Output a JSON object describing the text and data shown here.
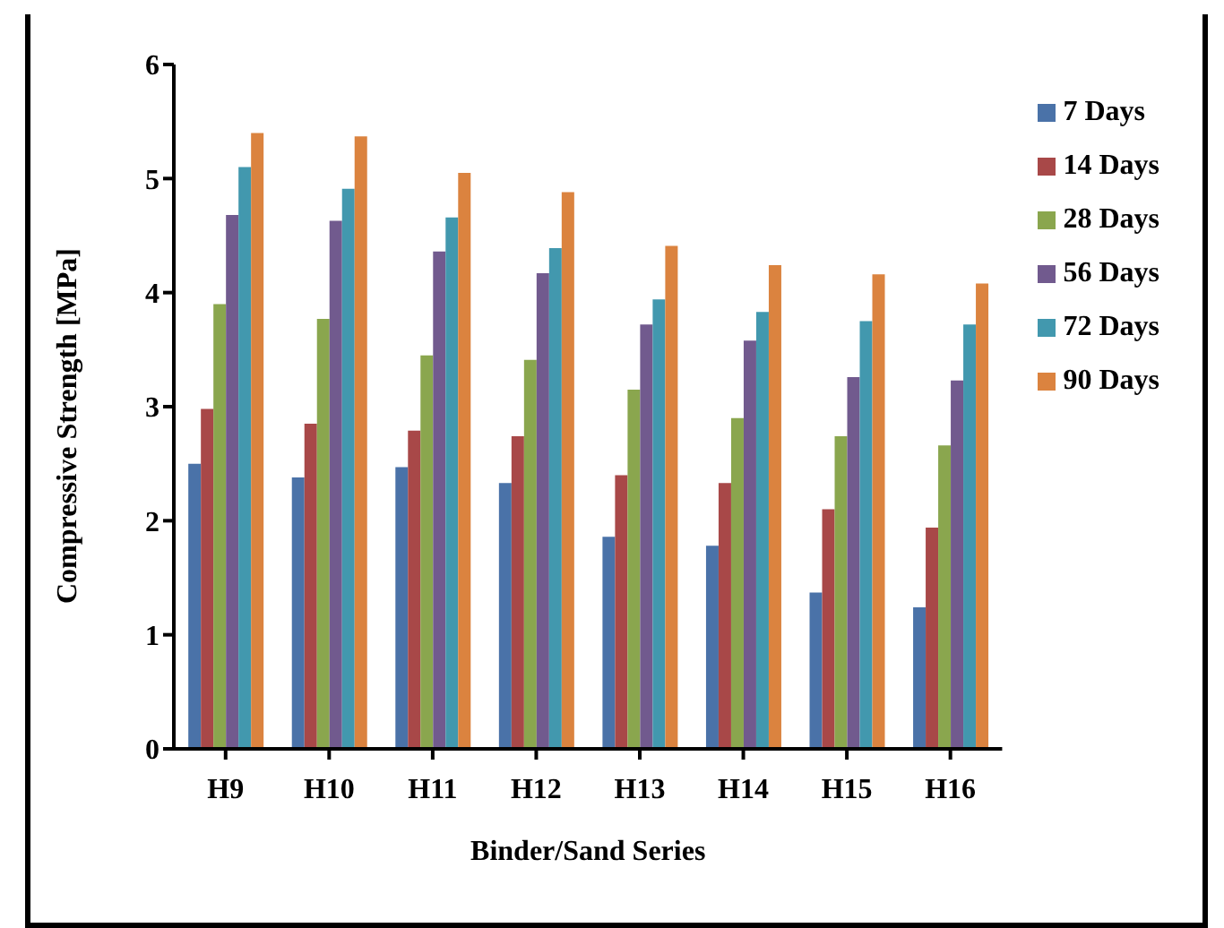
{
  "chart_data": {
    "type": "bar",
    "xlabel": "Binder/Sand Series",
    "ylabel": "Compressive Strength [MPa]",
    "categories": [
      "H9",
      "H10",
      "H11",
      "H12",
      "H13",
      "H14",
      "H15",
      "H16"
    ],
    "series": [
      {
        "name": "7 Days",
        "color": "#4a72a8",
        "values": [
          2.5,
          2.38,
          2.47,
          2.33,
          1.86,
          1.78,
          1.37,
          1.24
        ]
      },
      {
        "name": "14 Days",
        "color": "#a84848",
        "values": [
          2.98,
          2.85,
          2.79,
          2.74,
          2.4,
          2.33,
          2.1,
          1.94
        ]
      },
      {
        "name": "28 Days",
        "color": "#8aa64e",
        "values": [
          3.9,
          3.77,
          3.45,
          3.41,
          3.15,
          2.9,
          2.74,
          2.66
        ]
      },
      {
        "name": "56 Days",
        "color": "#715a8e",
        "values": [
          4.68,
          4.63,
          4.36,
          4.17,
          3.72,
          3.58,
          3.26,
          3.23
        ]
      },
      {
        "name": "72 Days",
        "color": "#4298ae",
        "values": [
          5.1,
          4.91,
          4.66,
          4.39,
          3.94,
          3.83,
          3.75,
          3.72
        ]
      },
      {
        "name": "90 Days",
        "color": "#db833f",
        "values": [
          5.4,
          5.37,
          5.05,
          4.88,
          4.41,
          4.24,
          4.16,
          4.08
        ]
      }
    ],
    "ylim": [
      0,
      6
    ],
    "yticks": [
      0,
      1,
      2,
      3,
      4,
      5,
      6
    ],
    "grid": false,
    "legend": "right"
  }
}
